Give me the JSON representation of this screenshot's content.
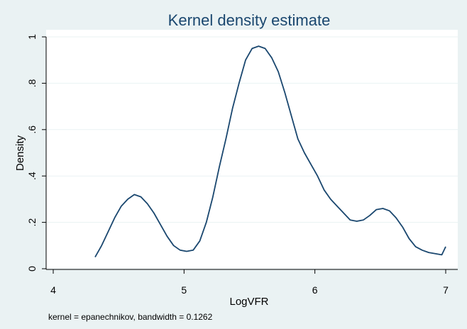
{
  "chart_data": {
    "type": "line",
    "title": "Kernel density estimate",
    "xlabel": "LogVFR",
    "ylabel": "Density",
    "note": "kernel = epanechnikov, bandwidth = 0.1262",
    "xlim": [
      4,
      7
    ],
    "ylim": [
      0,
      1
    ],
    "xticks": [
      4,
      5,
      6,
      7
    ],
    "xtick_labels": [
      "4",
      "5",
      "6",
      "7"
    ],
    "yticks": [
      0,
      0.2,
      0.4,
      0.6,
      0.8,
      1
    ],
    "ytick_labels": [
      "0",
      ".2",
      ".4",
      ".6",
      ".8",
      "1"
    ],
    "grid": true,
    "colors": {
      "background": "#eaf2f3",
      "plot_area": "#ffffff",
      "line": "#1a476f",
      "grid": "#eaf2f3",
      "title": "#1a476f"
    },
    "series": [
      {
        "x": [
          4.32,
          4.37,
          4.42,
          4.47,
          4.52,
          4.57,
          4.62,
          4.67,
          4.72,
          4.77,
          4.82,
          4.87,
          4.92,
          4.97,
          5.02,
          5.07,
          5.12,
          5.17,
          5.22,
          5.27,
          5.32,
          5.37,
          5.42,
          5.47,
          5.52,
          5.57,
          5.62,
          5.67,
          5.72,
          5.77,
          5.82,
          5.87,
          5.92,
          5.97,
          6.02,
          6.07,
          6.12,
          6.17,
          6.22,
          6.27,
          6.32,
          6.37,
          6.42,
          6.47,
          6.52,
          6.57,
          6.62,
          6.67,
          6.72,
          6.77,
          6.82,
          6.87,
          6.92,
          6.97,
          7.0
        ],
        "y": [
          0.05,
          0.1,
          0.16,
          0.22,
          0.27,
          0.3,
          0.32,
          0.31,
          0.28,
          0.24,
          0.19,
          0.14,
          0.1,
          0.08,
          0.075,
          0.08,
          0.12,
          0.2,
          0.31,
          0.44,
          0.56,
          0.69,
          0.8,
          0.9,
          0.95,
          0.96,
          0.95,
          0.91,
          0.85,
          0.76,
          0.66,
          0.56,
          0.5,
          0.45,
          0.4,
          0.34,
          0.3,
          0.27,
          0.24,
          0.21,
          0.205,
          0.21,
          0.23,
          0.255,
          0.26,
          0.25,
          0.22,
          0.18,
          0.13,
          0.095,
          0.08,
          0.07,
          0.065,
          0.06,
          0.095
        ]
      }
    ]
  }
}
